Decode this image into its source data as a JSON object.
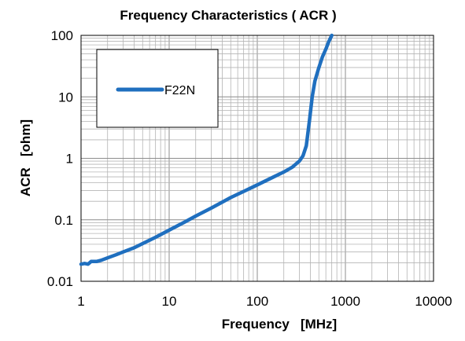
{
  "chart_data": {
    "type": "line",
    "title": "Frequency Characteristics ( ACR )",
    "xlabel": "Frequency   [MHz]",
    "ylabel": "ACR   [ohm]",
    "xscale": "log",
    "yscale": "log",
    "xlim": [
      1,
      10000
    ],
    "ylim": [
      0.01,
      100
    ],
    "x_ticks": [
      "1",
      "10",
      "100",
      "1000",
      "10000"
    ],
    "y_ticks": [
      "100",
      "10",
      "1",
      "0.1",
      "0.01"
    ],
    "grid": true,
    "legend": {
      "position": "top-left",
      "entries": [
        "F22N"
      ]
    },
    "series": [
      {
        "name": "F22N",
        "color": "#1f6fbf",
        "x": [
          1,
          1.1,
          1.2,
          1.3,
          1.5,
          1.7,
          2,
          2.5,
          3,
          4,
          5,
          7,
          10,
          15,
          20,
          30,
          50,
          70,
          100,
          150,
          200,
          250,
          300,
          330,
          360,
          390,
          420,
          450,
          500,
          550,
          600,
          650,
          700
        ],
        "y": [
          0.019,
          0.0195,
          0.019,
          0.021,
          0.021,
          0.022,
          0.024,
          0.027,
          0.03,
          0.035,
          0.041,
          0.052,
          0.068,
          0.092,
          0.115,
          0.155,
          0.23,
          0.29,
          0.37,
          0.49,
          0.6,
          0.72,
          0.9,
          1.1,
          1.6,
          4,
          10,
          18,
          30,
          45,
          60,
          80,
          100
        ]
      }
    ]
  }
}
